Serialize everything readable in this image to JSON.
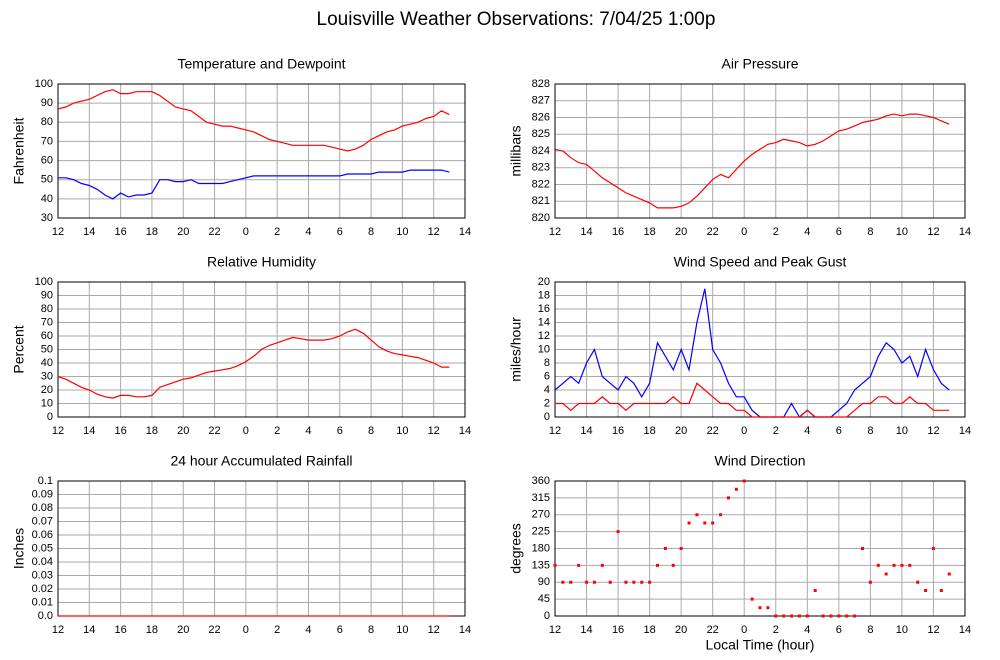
{
  "title": "Louisville Weather Observations: 7/04/25 1:00p",
  "chart_data": [
    {
      "type": "line",
      "title": "Temperature and Dewpoint",
      "ylabel": "Fahrenheit",
      "grid": true,
      "xlim": [
        12,
        38
      ],
      "xticks": [
        12,
        14,
        16,
        18,
        20,
        22,
        {
          "value": 24,
          "label": "0"
        },
        {
          "value": 26,
          "label": "2"
        },
        {
          "value": 28,
          "label": "4"
        },
        {
          "value": 30,
          "label": "6"
        },
        {
          "value": 32,
          "label": "8"
        },
        {
          "value": 34,
          "label": "10"
        },
        {
          "value": 36,
          "label": "12"
        },
        {
          "value": 38,
          "label": "14"
        }
      ],
      "ylim": [
        30,
        100
      ],
      "yticks": [
        30,
        40,
        50,
        60,
        70,
        80,
        90,
        100
      ],
      "x": [
        12,
        12.5,
        13,
        13.5,
        14,
        14.5,
        15,
        15.5,
        16,
        16.5,
        17,
        17.5,
        18,
        18.5,
        19,
        19.5,
        20,
        20.5,
        21,
        21.5,
        22,
        22.5,
        23,
        23.5,
        24,
        24.5,
        25,
        25.5,
        26,
        26.5,
        27,
        27.5,
        28,
        28.5,
        29,
        29.5,
        30,
        30.5,
        31,
        31.5,
        32,
        32.5,
        33,
        33.5,
        34,
        34.5,
        35,
        35.5,
        36,
        36.5,
        37
      ],
      "series": [
        {
          "color": "#ff0000",
          "values": [
            87,
            88,
            90,
            91,
            92,
            94,
            96,
            97,
            95,
            95,
            96,
            96,
            96,
            94,
            91,
            88,
            87,
            86,
            83,
            80,
            79,
            78,
            78,
            77,
            76,
            75,
            73,
            71,
            70,
            69,
            68,
            68,
            68,
            68,
            68,
            67,
            66,
            65,
            66,
            68,
            71,
            73,
            75,
            76,
            78,
            79,
            80,
            82,
            83,
            86,
            84
          ]
        },
        {
          "color": "#0000ff",
          "values": [
            51,
            51,
            50,
            48,
            47,
            45,
            42,
            40,
            43,
            41,
            42,
            42,
            43,
            50,
            50,
            49,
            49,
            50,
            48,
            48,
            48,
            48,
            49,
            50,
            51,
            52,
            52,
            52,
            52,
            52,
            52,
            52,
            52,
            52,
            52,
            52,
            52,
            53,
            53,
            53,
            53,
            54,
            54,
            54,
            54,
            55,
            55,
            55,
            55,
            55,
            54
          ]
        }
      ]
    },
    {
      "type": "line",
      "title": "Air Pressure",
      "ylabel": "millibars",
      "grid": true,
      "xlim": [
        12,
        38
      ],
      "xticks": [
        12,
        14,
        16,
        18,
        20,
        22,
        {
          "value": 24,
          "label": "0"
        },
        {
          "value": 26,
          "label": "2"
        },
        {
          "value": 28,
          "label": "4"
        },
        {
          "value": 30,
          "label": "6"
        },
        {
          "value": 32,
          "label": "8"
        },
        {
          "value": 34,
          "label": "10"
        },
        {
          "value": 36,
          "label": "12"
        },
        {
          "value": 38,
          "label": "14"
        }
      ],
      "ylim": [
        820,
        828
      ],
      "yticks": [
        820,
        821,
        822,
        823,
        824,
        825,
        826,
        827,
        828
      ],
      "x": [
        12,
        12.5,
        13,
        13.5,
        14,
        14.5,
        15,
        15.5,
        16,
        16.5,
        17,
        17.5,
        18,
        18.5,
        19,
        19.5,
        20,
        20.5,
        21,
        21.5,
        22,
        22.5,
        23,
        23.5,
        24,
        24.5,
        25,
        25.5,
        26,
        26.5,
        27,
        27.5,
        28,
        28.5,
        29,
        29.5,
        30,
        30.5,
        31,
        31.5,
        32,
        32.5,
        33,
        33.5,
        34,
        34.5,
        35,
        35.5,
        36,
        36.5,
        37
      ],
      "series": [
        {
          "color": "#ff0000",
          "values": [
            824.1,
            824,
            823.6,
            823.3,
            823.2,
            822.8,
            822.4,
            822.1,
            821.8,
            821.5,
            821.3,
            821.1,
            820.9,
            820.6,
            820.6,
            820.6,
            820.7,
            820.9,
            821.3,
            821.8,
            822.3,
            822.6,
            822.4,
            822.9,
            823.4,
            823.8,
            824.1,
            824.4,
            824.5,
            824.7,
            824.6,
            824.5,
            824.3,
            824.4,
            824.6,
            824.9,
            825.2,
            825.3,
            825.5,
            825.7,
            825.8,
            825.9,
            826.1,
            826.2,
            826.1,
            826.2,
            826.2,
            826.1,
            826,
            825.8,
            825.6
          ]
        }
      ]
    },
    {
      "type": "line",
      "title": "Relative Humidity",
      "ylabel": "Percent",
      "grid": true,
      "xlim": [
        12,
        38
      ],
      "xticks": [
        12,
        14,
        16,
        18,
        20,
        22,
        {
          "value": 24,
          "label": "0"
        },
        {
          "value": 26,
          "label": "2"
        },
        {
          "value": 28,
          "label": "4"
        },
        {
          "value": 30,
          "label": "6"
        },
        {
          "value": 32,
          "label": "8"
        },
        {
          "value": 34,
          "label": "10"
        },
        {
          "value": 36,
          "label": "12"
        },
        {
          "value": 38,
          "label": "14"
        }
      ],
      "ylim": [
        0,
        100
      ],
      "yticks": [
        0,
        10,
        20,
        30,
        40,
        50,
        60,
        70,
        80,
        90,
        100
      ],
      "x": [
        12,
        12.5,
        13,
        13.5,
        14,
        14.5,
        15,
        15.5,
        16,
        16.5,
        17,
        17.5,
        18,
        18.5,
        19,
        19.5,
        20,
        20.5,
        21,
        21.5,
        22,
        22.5,
        23,
        23.5,
        24,
        24.5,
        25,
        25.5,
        26,
        26.5,
        27,
        27.5,
        28,
        28.5,
        29,
        29.5,
        30,
        30.5,
        31,
        31.5,
        32,
        32.5,
        33,
        33.5,
        34,
        34.5,
        35,
        35.5,
        36,
        36.5,
        37
      ],
      "series": [
        {
          "color": "#ff0000",
          "values": [
            30,
            28,
            25,
            22,
            20,
            17,
            15,
            14,
            16,
            16,
            15,
            15,
            16,
            22,
            24,
            26,
            28,
            29,
            31,
            33,
            34,
            35,
            36,
            38,
            41,
            45,
            50,
            53,
            55,
            57,
            59,
            58,
            57,
            57,
            57,
            58,
            60,
            63,
            65,
            62,
            57,
            52,
            49,
            47,
            46,
            45,
            44,
            42,
            40,
            37,
            37
          ]
        }
      ]
    },
    {
      "type": "line",
      "title": "Wind Speed and Peak Gust",
      "ylabel": "miles/hour",
      "grid": true,
      "xlim": [
        12,
        38
      ],
      "xticks": [
        12,
        14,
        16,
        18,
        20,
        22,
        {
          "value": 24,
          "label": "0"
        },
        {
          "value": 26,
          "label": "2"
        },
        {
          "value": 28,
          "label": "4"
        },
        {
          "value": 30,
          "label": "6"
        },
        {
          "value": 32,
          "label": "8"
        },
        {
          "value": 34,
          "label": "10"
        },
        {
          "value": 36,
          "label": "12"
        },
        {
          "value": 38,
          "label": "14"
        }
      ],
      "ylim": [
        0,
        20
      ],
      "yticks": [
        0,
        2,
        4,
        6,
        8,
        10,
        12,
        14,
        16,
        18,
        20
      ],
      "x": [
        12,
        12.5,
        13,
        13.5,
        14,
        14.5,
        15,
        15.5,
        16,
        16.5,
        17,
        17.5,
        18,
        18.5,
        19,
        19.5,
        20,
        20.5,
        21,
        21.5,
        22,
        22.5,
        23,
        23.5,
        24,
        24.5,
        25,
        25.5,
        26,
        26.5,
        27,
        27.5,
        28,
        28.5,
        29,
        29.5,
        30,
        30.5,
        31,
        31.5,
        32,
        32.5,
        33,
        33.5,
        34,
        34.5,
        35,
        35.5,
        36,
        36.5,
        37
      ],
      "series": [
        {
          "color": "#0000ff",
          "values": [
            4,
            5,
            6,
            5,
            8,
            10,
            6,
            5,
            4,
            6,
            5,
            3,
            5,
            11,
            9,
            7,
            10,
            7,
            14,
            19,
            10,
            8,
            5,
            3,
            3,
            1,
            0,
            0,
            0,
            0,
            2,
            0,
            1,
            0,
            0,
            0,
            1,
            2,
            4,
            5,
            6,
            9,
            11,
            10,
            8,
            9,
            6,
            10,
            7,
            5,
            4
          ]
        },
        {
          "color": "#ff0000",
          "values": [
            2,
            2,
            1,
            2,
            2,
            2,
            3,
            2,
            2,
            1,
            2,
            2,
            2,
            2,
            2,
            3,
            2,
            2,
            5,
            4,
            3,
            2,
            2,
            1,
            1,
            0,
            0,
            0,
            0,
            0,
            0,
            0,
            1,
            0,
            0,
            0,
            0,
            0,
            1,
            2,
            2,
            3,
            3,
            2,
            2,
            3,
            2,
            2,
            1,
            1,
            1
          ]
        }
      ]
    },
    {
      "type": "line",
      "title": "24 hour Accumulated Rainfall",
      "ylabel": "Inches",
      "grid": true,
      "xlim": [
        12,
        38
      ],
      "xticks": [
        12,
        14,
        16,
        18,
        20,
        22,
        {
          "value": 24,
          "label": "0"
        },
        {
          "value": 26,
          "label": "2"
        },
        {
          "value": 28,
          "label": "4"
        },
        {
          "value": 30,
          "label": "6"
        },
        {
          "value": 32,
          "label": "8"
        },
        {
          "value": 34,
          "label": "10"
        },
        {
          "value": 36,
          "label": "12"
        },
        {
          "value": 38,
          "label": "14"
        }
      ],
      "ylim": [
        0,
        0.1
      ],
      "yticks": [
        {
          "value": 0,
          "label": "0.0"
        },
        0.01,
        0.02,
        0.03,
        0.04,
        0.05,
        0.06,
        0.07,
        0.08,
        0.09,
        0.1
      ],
      "x": [
        12,
        37
      ],
      "series": [
        {
          "color": "#ff0000",
          "values": [
            0,
            0
          ]
        }
      ]
    },
    {
      "type": "scatter",
      "title": "Wind Direction",
      "ylabel": "degrees",
      "xlabel": "Local Time (hour)",
      "grid": true,
      "xlim": [
        12,
        38
      ],
      "xticks": [
        12,
        14,
        16,
        18,
        20,
        22,
        {
          "value": 24,
          "label": "0"
        },
        {
          "value": 26,
          "label": "2"
        },
        {
          "value": 28,
          "label": "4"
        },
        {
          "value": 30,
          "label": "6"
        },
        {
          "value": 32,
          "label": "8"
        },
        {
          "value": 34,
          "label": "10"
        },
        {
          "value": 36,
          "label": "12"
        },
        {
          "value": 38,
          "label": "14"
        }
      ],
      "ylim": [
        0,
        360
      ],
      "yticks": [
        0,
        45,
        90,
        135,
        180,
        225,
        270,
        315,
        360
      ],
      "x": [
        12,
        12.5,
        13,
        13.5,
        14,
        14.5,
        15,
        15.5,
        16,
        16.5,
        17,
        17.5,
        18,
        18.5,
        19,
        19.5,
        20,
        20.5,
        21,
        21.5,
        22,
        22.5,
        23,
        23.5,
        24,
        24.5,
        25,
        25.5,
        26,
        26.5,
        27,
        27.5,
        28,
        28.5,
        29,
        29.5,
        30,
        30.5,
        31,
        31.5,
        32,
        32.5,
        33,
        33.5,
        34,
        34.5,
        35,
        35.5,
        36,
        36.5,
        37
      ],
      "series": [
        {
          "color": "#ff0000",
          "values": [
            135,
            90,
            90,
            135,
            90,
            90,
            135,
            90,
            225,
            90,
            90,
            90,
            90,
            135,
            180,
            135,
            180,
            248,
            270,
            248,
            248,
            270,
            315,
            338,
            360,
            45,
            22,
            22,
            0,
            0,
            0,
            0,
            0,
            68,
            0,
            0,
            0,
            0,
            0,
            180,
            90,
            135,
            112,
            135,
            135,
            135,
            90,
            68,
            180,
            68,
            112
          ]
        }
      ]
    }
  ]
}
